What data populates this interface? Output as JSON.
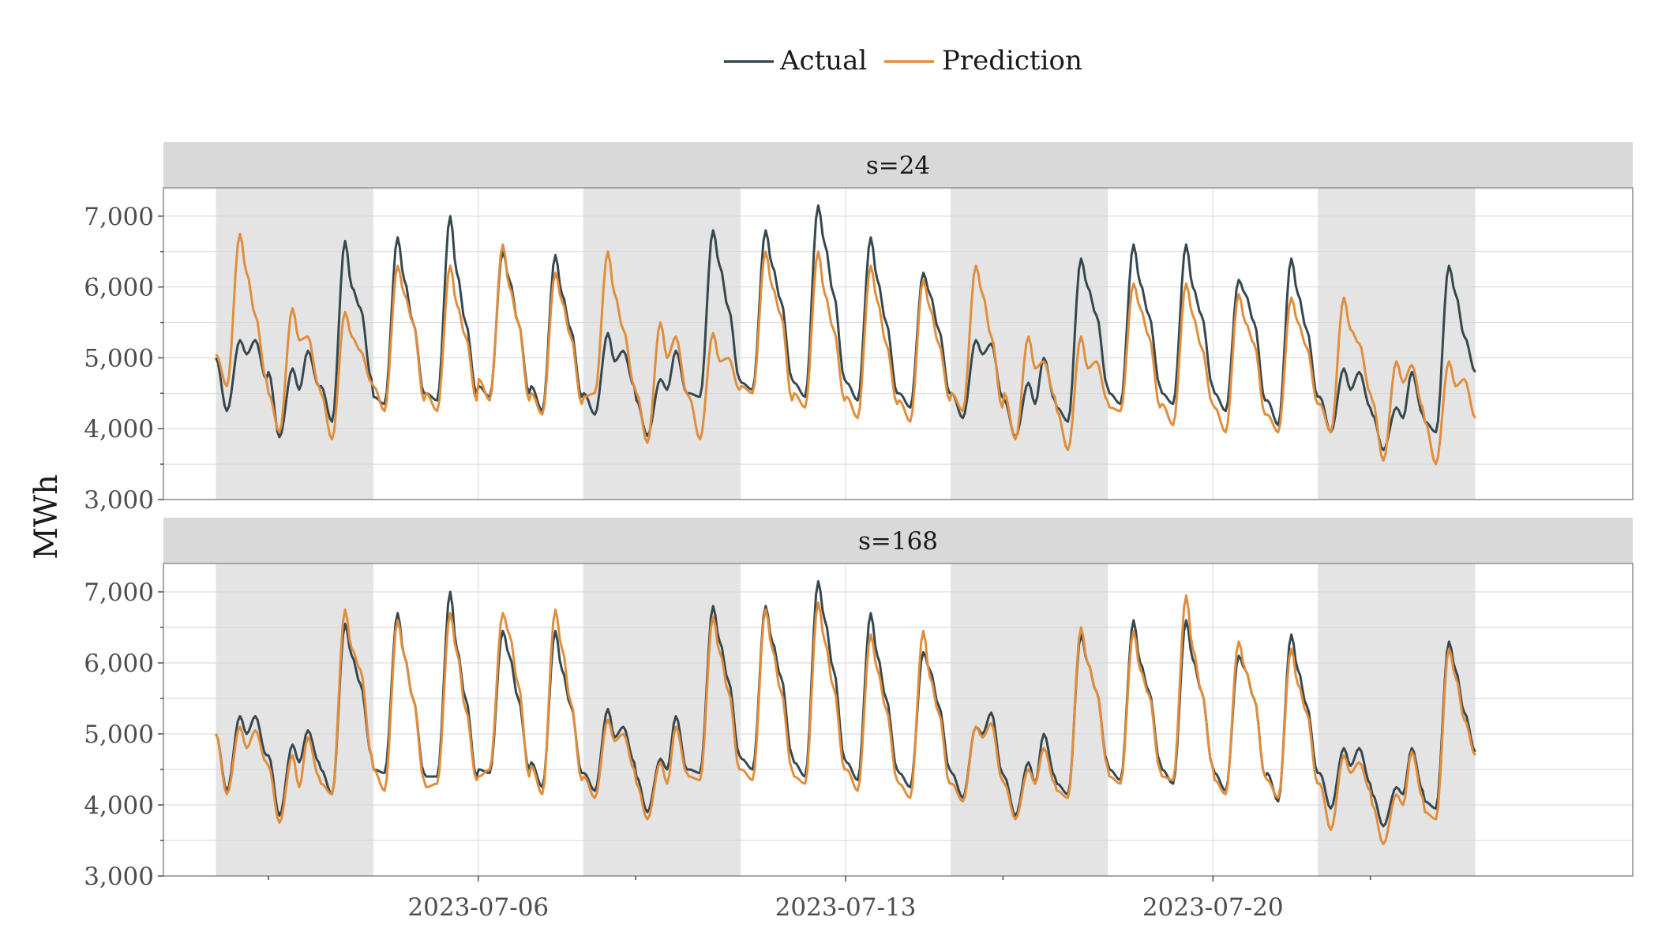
{
  "chart_data": {
    "type": "line",
    "ylabel": "MWh",
    "xlabel": "",
    "ylim": [
      3000,
      7400
    ],
    "yticks": [
      3000,
      4000,
      5000,
      6000,
      7000
    ],
    "ytick_labels": [
      "3,000",
      "4,000",
      "5,000",
      "6,000",
      "7,000"
    ],
    "x_range": [
      "2023-06-30",
      "2023-07-28"
    ],
    "x_start": "2023-07-01",
    "x_end": "2023-07-25",
    "xticks": [
      "2023-07-06",
      "2023-07-13",
      "2023-07-20"
    ],
    "minor_xticks": [
      "2023-07-02",
      "2023-07-09",
      "2023-07-16",
      "2023-07-23"
    ],
    "weekend_shading": [
      [
        "2023-07-01",
        "2023-07-04"
      ],
      [
        "2023-07-08",
        "2023-07-11"
      ],
      [
        "2023-07-15",
        "2023-07-18"
      ],
      [
        "2023-07-22",
        "2023-07-25"
      ]
    ],
    "grid": true,
    "legend_position": "top-center",
    "colors": {
      "Actual": "#36484f",
      "Prediction": "#e08e3c",
      "shade": "#e4e4e4",
      "strip": "#d9d9d9"
    },
    "series_names": [
      "Actual",
      "Prediction"
    ],
    "panels": [
      {
        "label": "s=24",
        "daily": {
          "Actual": [
            [
              5000,
              4250,
              5250,
              5050,
              5250,
              4700
            ],
            [
              4800,
              3880,
              4850,
              4550,
              5100,
              4600
            ],
            [
              4600,
              4100,
              6650,
              6000,
              5700,
              4700
            ],
            [
              4450,
              4350,
              6700,
              6100,
              5500,
              4500
            ],
            [
              4500,
              4400,
              7000,
              6200,
              5500,
              4500
            ],
            [
              4600,
              4450,
              6500,
              6100,
              5500,
              4500
            ],
            [
              4600,
              4250,
              6450,
              5900,
              5400,
              4450
            ],
            [
              4500,
              4200,
              5350,
              4950,
              5100,
              4600
            ],
            [
              4400,
              3900,
              4700,
              4550,
              5100,
              4500
            ],
            [
              4500,
              4450,
              6800,
              6300,
              5700,
              4700
            ],
            [
              4650,
              4550,
              6800,
              6300,
              5800,
              4700
            ],
            [
              4650,
              4450,
              7150,
              6600,
              5900,
              4700
            ],
            [
              4650,
              4400,
              6700,
              6100,
              5500,
              4500
            ],
            [
              4500,
              4300,
              6200,
              5900,
              5400,
              4500
            ],
            [
              4500,
              4150,
              5250,
              5050,
              5200,
              4450
            ],
            [
              4400,
              3880,
              4650,
              4350,
              5000,
              4400
            ],
            [
              4300,
              4100,
              6400,
              6000,
              5600,
              4600
            ],
            [
              4500,
              4350,
              6600,
              6050,
              5600,
              4600
            ],
            [
              4500,
              4350,
              6600,
              6000,
              5600,
              4600
            ],
            [
              4500,
              4250,
              6100,
              5900,
              5500,
              4400
            ],
            [
              4400,
              4050,
              6400,
              5900,
              5400,
              4450
            ],
            [
              4450,
              3950,
              4850,
              4550,
              4800,
              4300
            ],
            [
              4200,
              3700,
              4300,
              4150,
              4800,
              4200
            ],
            [
              4100,
              3950,
              6300,
              5900,
              5300,
              4800
            ]
          ],
          "Prediction": [
            [
              5050,
              4600,
              6750,
              6200,
              5600,
              4700
            ],
            [
              4500,
              3950,
              5700,
              5250,
              5300,
              4600
            ],
            [
              4500,
              3850,
              5650,
              5300,
              5100,
              4650
            ],
            [
              4600,
              4250,
              6300,
              5900,
              5500,
              4400
            ],
            [
              4500,
              4250,
              6300,
              5750,
              5300,
              4400
            ],
            [
              4700,
              4400,
              6600,
              6000,
              5500,
              4400
            ],
            [
              4500,
              4200,
              6200,
              5800,
              5300,
              4350
            ],
            [
              4450,
              4500,
              6500,
              5900,
              5400,
              4600
            ],
            [
              4500,
              3800,
              5500,
              5000,
              5300,
              4500
            ],
            [
              4450,
              3850,
              5350,
              4950,
              5000,
              4550
            ],
            [
              4600,
              4500,
              6500,
              6000,
              5600,
              4400
            ],
            [
              4500,
              4300,
              6500,
              5900,
              5400,
              4400
            ],
            [
              4450,
              4150,
              6300,
              5800,
              5200,
              4350
            ],
            [
              4400,
              4100,
              6100,
              5700,
              5200,
              4400
            ],
            [
              4500,
              4250,
              6300,
              5900,
              5300,
              4300
            ],
            [
              4500,
              3850,
              5300,
              4850,
              4950,
              4450
            ],
            [
              4250,
              3700,
              5300,
              4850,
              4950,
              4400
            ],
            [
              4300,
              4250,
              6050,
              5700,
              5300,
              4300
            ],
            [
              4350,
              4050,
              6050,
              5600,
              5150,
              4350
            ],
            [
              4300,
              3950,
              5900,
              5500,
              5200,
              4200
            ],
            [
              4200,
              3950,
              5850,
              5500,
              5150,
              4350
            ],
            [
              4350,
              3950,
              5850,
              5400,
              5200,
              4500
            ],
            [
              4400,
              3550,
              4950,
              4650,
              4900,
              4300
            ],
            [
              4100,
              3500,
              4950,
              4600,
              4700,
              4150
            ]
          ]
        }
      },
      {
        "label": "s=168",
        "daily": {
          "Actual": [
            [
              5000,
              4200,
              5250,
              5000,
              5250,
              4700
            ],
            [
              4700,
              3850,
              4850,
              4600,
              5050,
              4600
            ],
            [
              4500,
              4150,
              6550,
              6100,
              5700,
              4700
            ],
            [
              4500,
              4450,
              6700,
              6100,
              5500,
              4450
            ],
            [
              4400,
              4400,
              7000,
              6200,
              5500,
              4400
            ],
            [
              4500,
              4450,
              6450,
              6100,
              5500,
              4500
            ],
            [
              4600,
              4250,
              6450,
              5900,
              5400,
              4450
            ],
            [
              4450,
              4200,
              5350,
              4950,
              5100,
              4600
            ],
            [
              4400,
              3900,
              4650,
              4500,
              5250,
              4500
            ],
            [
              4500,
              4450,
              6800,
              6300,
              5750,
              4700
            ],
            [
              4650,
              4500,
              6800,
              6300,
              5800,
              4700
            ],
            [
              4600,
              4400,
              7150,
              6600,
              5900,
              4650
            ],
            [
              4600,
              4350,
              6700,
              6100,
              5500,
              4500
            ],
            [
              4450,
              4250,
              6150,
              5900,
              5400,
              4500
            ],
            [
              4450,
              4100,
              5100,
              5000,
              5300,
              4450
            ],
            [
              4400,
              3850,
              4600,
              4300,
              5000,
              4400
            ],
            [
              4300,
              4150,
              6400,
              6000,
              5600,
              4600
            ],
            [
              4500,
              4350,
              6600,
              6000,
              5600,
              4600
            ],
            [
              4500,
              4300,
              6600,
              6050,
              5600,
              4550
            ],
            [
              4450,
              4200,
              6100,
              5900,
              5500,
              4400
            ],
            [
              4450,
              4050,
              6400,
              5900,
              5400,
              4450
            ],
            [
              4450,
              3950,
              4800,
              4550,
              4800,
              4300
            ],
            [
              4150,
              3700,
              4250,
              4150,
              4800,
              4200
            ],
            [
              4050,
              3950,
              6300,
              5900,
              5300,
              4750
            ]
          ],
          "Prediction": [
            [
              5000,
              4150,
              5100,
              4800,
              5050,
              4600
            ],
            [
              4550,
              3750,
              4700,
              4250,
              4950,
              4400
            ],
            [
              4300,
              4150,
              6750,
              6200,
              5900,
              4700
            ],
            [
              4500,
              4200,
              6600,
              6100,
              5500,
              4350
            ],
            [
              4250,
              4300,
              6700,
              6150,
              5350,
              4350
            ],
            [
              4400,
              4500,
              6700,
              6400,
              5700,
              4400
            ],
            [
              4550,
              4150,
              6750,
              6200,
              5450,
              4350
            ],
            [
              4400,
              4100,
              5200,
              4900,
              5000,
              4500
            ],
            [
              4300,
              3800,
              4600,
              4300,
              5100,
              4450
            ],
            [
              4400,
              4350,
              6650,
              6150,
              5600,
              4500
            ],
            [
              4500,
              4350,
              6750,
              6200,
              5600,
              4500
            ],
            [
              4400,
              4300,
              6850,
              6300,
              5650,
              4500
            ],
            [
              4500,
              4200,
              6400,
              5900,
              5350,
              4350
            ],
            [
              4300,
              4100,
              6450,
              5800,
              5300,
              4300
            ],
            [
              4300,
              4050,
              5100,
              4950,
              5150,
              4350
            ],
            [
              4300,
              3800,
              4500,
              4300,
              4800,
              4300
            ],
            [
              4200,
              4100,
              6500,
              6000,
              5600,
              4550
            ],
            [
              4400,
              4300,
              6450,
              5900,
              5550,
              4500
            ],
            [
              4400,
              4350,
              6950,
              6200,
              5600,
              4550
            ],
            [
              4350,
              4150,
              6300,
              5900,
              5500,
              4400
            ],
            [
              4350,
              4100,
              6200,
              5700,
              5300,
              4300
            ],
            [
              4300,
              3650,
              4700,
              4450,
              4600,
              4200
            ],
            [
              4000,
              3450,
              4150,
              4000,
              4750,
              4100
            ],
            [
              3900,
              3800,
              6200,
              5800,
              5200,
              4700
            ]
          ]
        }
      }
    ]
  }
}
